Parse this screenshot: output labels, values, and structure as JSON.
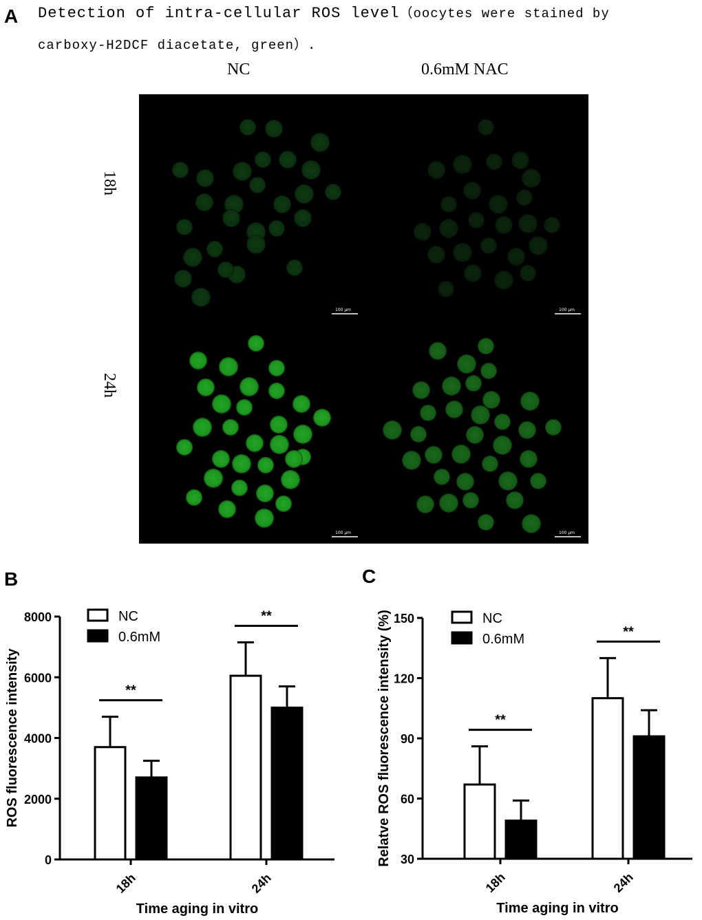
{
  "panel_a": {
    "letter": "A",
    "caption_line1_main": "Detection of intra-cellular ROS level",
    "caption_line1_small": "（oocytes were stained by",
    "caption_line2": "carboxy-H2DCF diacetate, green）.",
    "columns": [
      "NC",
      "0.6mM NAC"
    ],
    "rows": [
      "18h",
      "24h"
    ],
    "scale_bar": "100 μm",
    "colors": {
      "background": "#000000",
      "fluorescence": "#22aa22"
    }
  },
  "chart_data": [
    {
      "panel": "B",
      "type": "bar",
      "categories": [
        "18h",
        "24h"
      ],
      "series": [
        {
          "name": "NC",
          "values": [
            3700,
            6050
          ],
          "errors": [
            1000,
            1100
          ],
          "fill": "#ffffff"
        },
        {
          "name": "0.6mM",
          "values": [
            2700,
            5000
          ],
          "errors": [
            550,
            700
          ],
          "fill": "#000000"
        }
      ],
      "significance": [
        "**",
        "**"
      ],
      "xlabel": "Time aging in vitro",
      "ylabel": "ROS fluorescence intensity",
      "ylim": [
        0,
        8000
      ],
      "yticks": [
        0,
        2000,
        4000,
        6000,
        8000
      ],
      "legend": "top-left",
      "grid": false
    },
    {
      "panel": "C",
      "type": "bar",
      "categories": [
        "18h",
        "24h"
      ],
      "series": [
        {
          "name": "NC",
          "values": [
            67,
            110
          ],
          "errors": [
            19,
            20
          ],
          "fill": "#ffffff"
        },
        {
          "name": "0.6mM",
          "values": [
            49,
            91
          ],
          "errors": [
            10,
            13
          ],
          "fill": "#000000"
        }
      ],
      "significance": [
        "**",
        "**"
      ],
      "xlabel": "Time aging in vitro",
      "ylabel": "Relatve ROS fluorescence intensity (%)",
      "ylim": [
        30,
        150
      ],
      "yticks": [
        30,
        60,
        90,
        120,
        150
      ],
      "legend": "top-left",
      "grid": false
    }
  ]
}
